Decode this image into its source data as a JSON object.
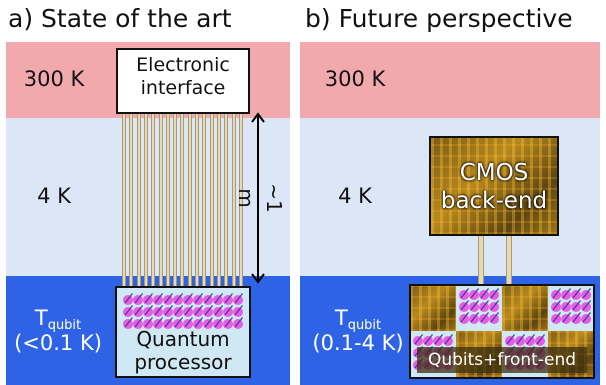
{
  "panel_a": {
    "title": "a) State of the art",
    "temp_hot": "300 K",
    "temp_mid": "4 K",
    "temp_cold_main": "T",
    "temp_cold_sub": "qubit",
    "temp_cold_range": "(<0.1 K)",
    "interface_line1": "Electronic",
    "interface_line2": "interface",
    "distance_label": "~1 m",
    "processor_line1": "Quantum",
    "processor_line2": "processor"
  },
  "panel_b": {
    "title": "b) Future perspective",
    "temp_hot": "300 K",
    "temp_mid": "4 K",
    "temp_cold_main": "T",
    "temp_cold_sub": "qubit",
    "temp_cold_range": "(0.1-4 K)",
    "cmos_line1": "CMOS",
    "cmos_line2": "back-end",
    "frontend_label": "Qubits+front-end"
  },
  "colors": {
    "hot_band": "#f2a9ae",
    "mid_band": "#dbe6f6",
    "cold_band": "#2e63e6",
    "qubit": "#e85ce0",
    "arrow": "#3a3aa8",
    "wire": "#e6d9b4"
  }
}
